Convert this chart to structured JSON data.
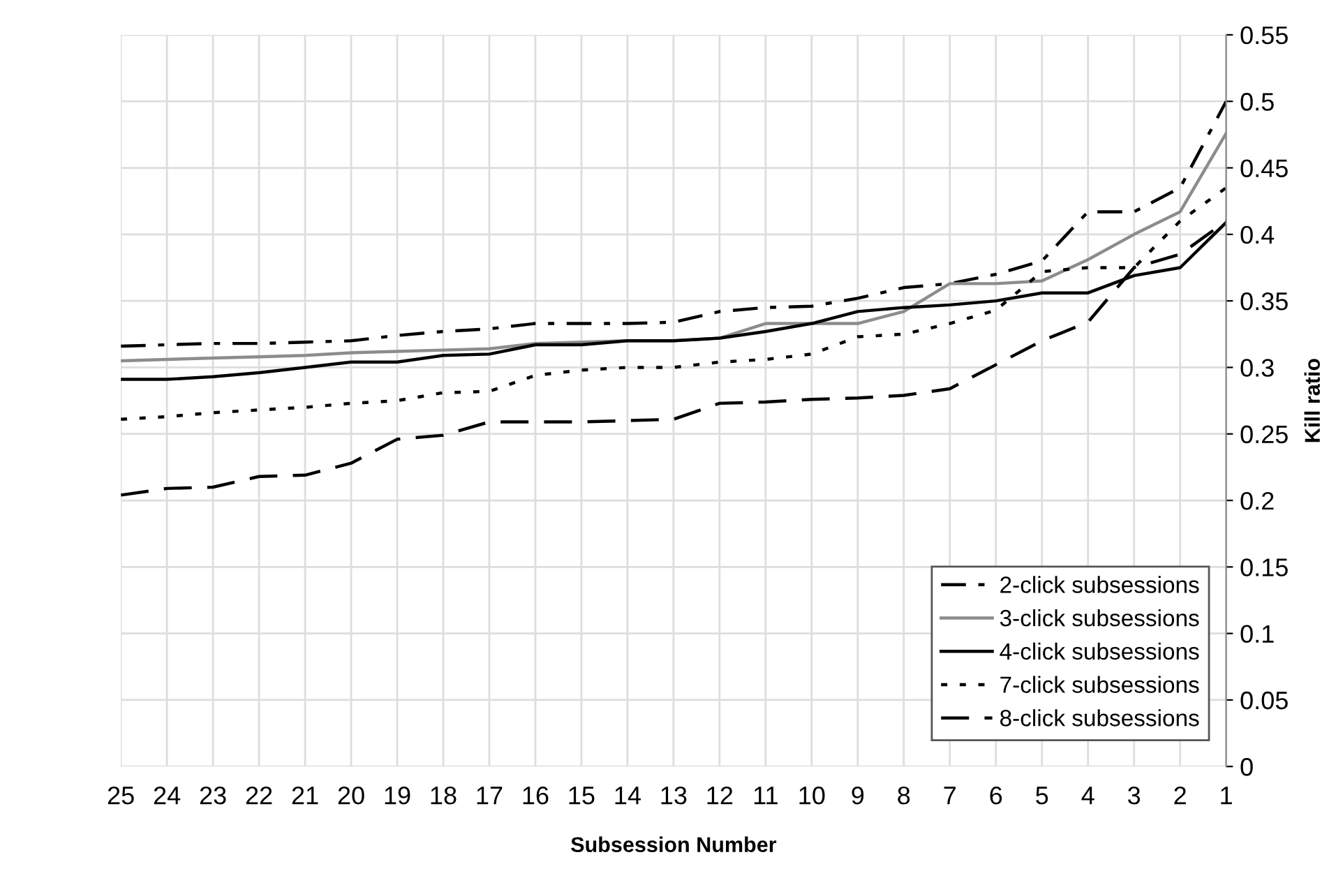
{
  "chart_data": {
    "type": "line",
    "xlabel": "Subsession Number",
    "ylabel": "Kill ratio",
    "categories": [
      "25",
      "24",
      "23",
      "22",
      "21",
      "20",
      "19",
      "18",
      "17",
      "16",
      "15",
      "14",
      "13",
      "12",
      "11",
      "10",
      "9",
      "8",
      "7",
      "6",
      "5",
      "4",
      "3",
      "2",
      "1"
    ],
    "ylim": [
      0,
      0.55
    ],
    "yticks": [
      0,
      0.05,
      0.1,
      0.15,
      0.2,
      0.25,
      0.3,
      0.35,
      0.4,
      0.45,
      0.5,
      0.55
    ],
    "grid": true,
    "legend": "bottom right",
    "marker": "none",
    "series": [
      {
        "name": "2-click subsessions",
        "color": "#000000",
        "line_style": "dashdot",
        "values": [
          0.316,
          0.317,
          0.318,
          0.318,
          0.319,
          0.32,
          0.324,
          0.327,
          0.329,
          0.333,
          0.333,
          0.333,
          0.334,
          0.342,
          0.345,
          0.346,
          0.352,
          0.36,
          0.363,
          0.37,
          0.38,
          0.417,
          0.417,
          0.435,
          0.5
        ]
      },
      {
        "name": "3-click subsessions",
        "color": "#8c8c8c",
        "line_style": "solid",
        "values": [
          0.305,
          0.306,
          0.307,
          0.308,
          0.309,
          0.311,
          0.312,
          0.313,
          0.314,
          0.318,
          0.319,
          0.32,
          0.32,
          0.322,
          0.333,
          0.333,
          0.333,
          0.342,
          0.363,
          0.363,
          0.365,
          0.381,
          0.4,
          0.417,
          0.476
        ]
      },
      {
        "name": "4-click subsessions",
        "color": "#000000",
        "line_style": "solid",
        "values": [
          0.291,
          0.291,
          0.293,
          0.296,
          0.3,
          0.304,
          0.304,
          0.309,
          0.31,
          0.317,
          0.317,
          0.32,
          0.32,
          0.322,
          0.327,
          0.333,
          0.342,
          0.345,
          0.347,
          0.35,
          0.356,
          0.356,
          0.369,
          0.375,
          0.409
        ]
      },
      {
        "name": "7-click subsessions",
        "color": "#000000",
        "line_style": "dotted",
        "values": [
          0.261,
          0.263,
          0.266,
          0.268,
          0.27,
          0.273,
          0.275,
          0.281,
          0.282,
          0.294,
          0.298,
          0.3,
          0.3,
          0.304,
          0.306,
          0.31,
          0.323,
          0.325,
          0.333,
          0.343,
          0.372,
          0.375,
          0.375,
          0.41,
          0.435
        ]
      },
      {
        "name": "8-click subsessions",
        "color": "#000000",
        "line_style": "dashed",
        "values": [
          0.204,
          0.209,
          0.21,
          0.218,
          0.219,
          0.228,
          0.246,
          0.249,
          0.259,
          0.259,
          0.259,
          0.26,
          0.261,
          0.273,
          0.274,
          0.276,
          0.277,
          0.279,
          0.284,
          0.302,
          0.32,
          0.334,
          0.375,
          0.385,
          0.41
        ]
      }
    ]
  }
}
